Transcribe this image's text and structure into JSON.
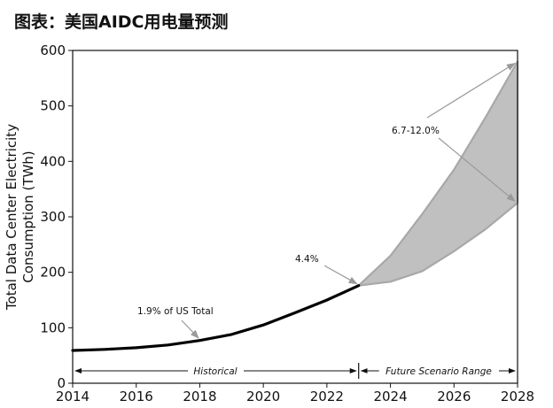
{
  "header": {
    "title": "图表：美国AIDC用电量预测"
  },
  "chart_data": {
    "type": "line",
    "title": "",
    "xlabel": "",
    "ylabel_lines": [
      "Total Data Center Electricity",
      "Consumption (TWh)"
    ],
    "xlim": [
      2014,
      2028
    ],
    "ylim": [
      0,
      600
    ],
    "x_ticks": [
      2014,
      2016,
      2018,
      2020,
      2022,
      2024,
      2026,
      2028
    ],
    "y_ticks": [
      0,
      100,
      200,
      300,
      400,
      500,
      600
    ],
    "grid": false,
    "historical": {
      "x": [
        2014,
        2015,
        2016,
        2017,
        2018,
        2019,
        2020,
        2021,
        2022,
        2023
      ],
      "y": [
        59,
        61,
        64,
        69,
        77,
        88,
        105,
        127,
        150,
        176
      ]
    },
    "scenario_upper": {
      "x": [
        2023,
        2024,
        2025,
        2026,
        2027,
        2028
      ],
      "y": [
        176,
        230,
        305,
        385,
        480,
        580
      ]
    },
    "scenario_lower": {
      "x": [
        2023,
        2024,
        2025,
        2026,
        2027,
        2028
      ],
      "y": [
        176,
        183,
        202,
        238,
        278,
        325
      ]
    },
    "colors": {
      "historical": "#000000",
      "band_fill": "#c0c0c0",
      "band_edge": "#a8a8a8",
      "arrow": "#999999"
    },
    "annotations": {
      "us_1_9": "1.9% of US Total",
      "us_4_4": "4.4%",
      "range_6_7_12": "6.7-12.0%"
    },
    "periods": {
      "historical": "Historical",
      "future": "Future Scenario Range"
    }
  }
}
